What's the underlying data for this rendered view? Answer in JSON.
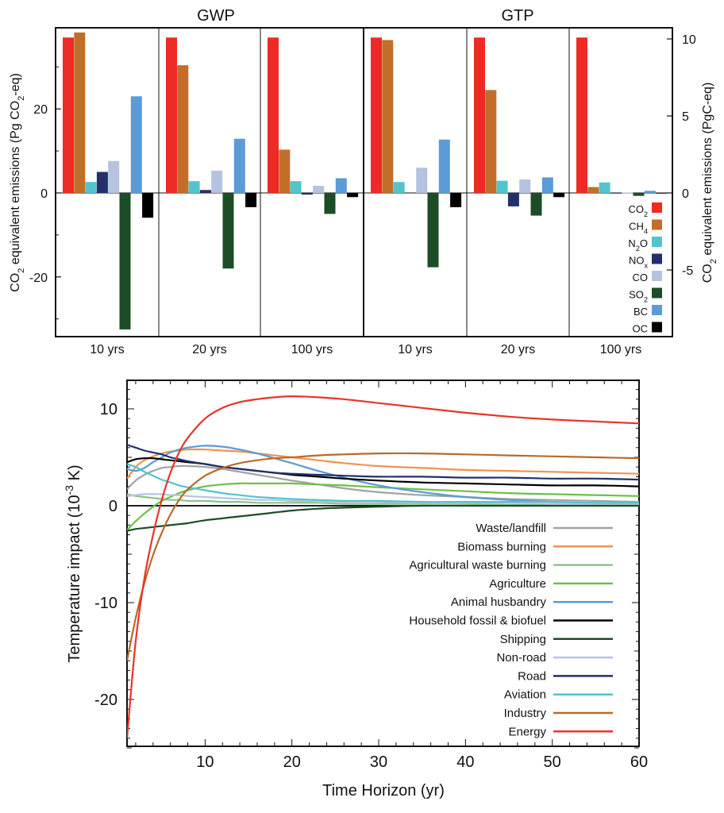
{
  "chart_data": [
    {
      "type": "bar",
      "group_titles": [
        "GWP",
        "GTP"
      ],
      "horizon_labels": [
        "10 yrs",
        "20 yrs",
        "100 yrs"
      ],
      "ylabel_left": {
        "main": "CO",
        "sub": "2",
        "rest": " equivalent emissions (Pg CO",
        "sub2": "2",
        "end": "-eq)"
      },
      "ylabel_right": {
        "main": "CO",
        "sub": "2",
        "rest": " equivalent emissions (PgC-eq)"
      },
      "yticks_left": [
        "-20",
        "0",
        "20"
      ],
      "yticks_right": [
        "-5",
        "0",
        "5",
        "10"
      ],
      "ylim_left": [
        -32.5,
        39
      ],
      "right_axis_factor_pg_co2_per_pgc": 3.667,
      "legend": [
        {
          "key": "CO2",
          "label": "CO",
          "sub": "2",
          "color": "#ee2a24"
        },
        {
          "key": "CH4",
          "label": "CH",
          "sub": "4",
          "color": "#c26e2b"
        },
        {
          "key": "N2O",
          "label": "N",
          "sub": "2",
          "tail": "O",
          "color": "#52c4cc"
        },
        {
          "key": "NOx",
          "label": "NO",
          "sub": "x",
          "color": "#23306b"
        },
        {
          "key": "CO",
          "label": "CO",
          "sub": "",
          "color": "#b6c3df"
        },
        {
          "key": "SO2",
          "label": "SO",
          "sub": "2",
          "color": "#1d4d27"
        },
        {
          "key": "BC",
          "label": "BC",
          "sub": "",
          "color": "#5a9bd8"
        },
        {
          "key": "OC",
          "label": "OC",
          "sub": "",
          "color": "#000000"
        }
      ],
      "panels": [
        {
          "metric": "GWP",
          "horizon": "10 yrs",
          "values": {
            "CO2": 37.0,
            "CH4": 38.2,
            "N2O": 2.6,
            "NOx": 5.0,
            "CO": 7.6,
            "SO2": -32.5,
            "BC": 23.0,
            "OC": -5.9
          }
        },
        {
          "metric": "GWP",
          "horizon": "20 yrs",
          "values": {
            "CO2": 37.0,
            "CH4": 30.4,
            "N2O": 2.8,
            "NOx": 0.7,
            "CO": 5.3,
            "SO2": -18.0,
            "BC": 12.9,
            "OC": -3.4
          }
        },
        {
          "metric": "GWP",
          "horizon": "100 yrs",
          "values": {
            "CO2": 37.0,
            "CH4": 10.3,
            "N2O": 2.8,
            "NOx": -0.4,
            "CO": 1.7,
            "SO2": -5.0,
            "BC": 3.5,
            "OC": -1.0
          }
        },
        {
          "metric": "GTP",
          "horizon": "10 yrs",
          "values": {
            "CO2": 37.0,
            "CH4": 36.4,
            "N2O": 2.6,
            "NOx": 0.0,
            "CO": 6.0,
            "SO2": -17.7,
            "BC": 12.7,
            "OC": -3.4
          }
        },
        {
          "metric": "GTP",
          "horizon": "20 yrs",
          "values": {
            "CO2": 37.0,
            "CH4": 24.5,
            "N2O": 2.9,
            "NOx": -3.2,
            "CO": 3.2,
            "SO2": -5.4,
            "BC": 3.7,
            "OC": -1.0
          }
        },
        {
          "metric": "GTP",
          "horizon": "100 yrs",
          "values": {
            "CO2": 37.0,
            "CH4": 1.4,
            "N2O": 2.5,
            "NOx": -0.1,
            "CO": 0.1,
            "SO2": -0.7,
            "BC": 0.5,
            "OC": -0.1
          }
        }
      ]
    },
    {
      "type": "line",
      "xlabel": "Time Horizon (yr)",
      "ylabel": {
        "main": "Temperature impact (10",
        "sup": "-3",
        "end": " K)"
      },
      "xlim": [
        1,
        60
      ],
      "ylim": [
        -25,
        13
      ],
      "xticks": [
        10,
        20,
        30,
        40,
        50,
        60
      ],
      "yticks": [
        -20,
        -10,
        0,
        10
      ],
      "zero_line": true,
      "x": [
        1,
        2,
        3,
        4,
        5,
        6,
        7,
        8,
        10,
        12,
        14,
        16,
        18,
        20,
        23,
        26,
        30,
        35,
        40,
        45,
        50,
        55,
        60
      ],
      "series": [
        {
          "name": "Waste/landfill",
          "color": "#a3a3a3",
          "values": [
            1.7,
            2.6,
            3.2,
            3.6,
            3.9,
            4.0,
            4.1,
            4.1,
            4.0,
            3.8,
            3.5,
            3.2,
            2.9,
            2.6,
            2.2,
            1.8,
            1.4,
            1.1,
            0.9,
            0.7,
            0.6,
            0.5,
            0.4
          ]
        },
        {
          "name": "Biomass burning",
          "color": "#f19250",
          "values": [
            2.8,
            4.0,
            4.7,
            5.1,
            5.4,
            5.6,
            5.7,
            5.8,
            5.8,
            5.7,
            5.6,
            5.4,
            5.2,
            5.0,
            4.7,
            4.4,
            4.1,
            3.9,
            3.7,
            3.6,
            3.5,
            3.4,
            3.3
          ]
        },
        {
          "name": "Agricultural waste burning",
          "color": "#8fc28c",
          "values": [
            1.2,
            1.0,
            0.9,
            0.8,
            0.7,
            0.6,
            0.6,
            0.5,
            0.5,
            0.4,
            0.4,
            0.3,
            0.3,
            0.3,
            0.3,
            0.2,
            0.2,
            0.2,
            0.2,
            0.1,
            0.1,
            0.1,
            0.1
          ]
        },
        {
          "name": "Agriculture",
          "color": "#6ac146",
          "values": [
            -2.5,
            -1.6,
            -0.8,
            -0.1,
            0.5,
            0.9,
            1.3,
            1.6,
            2.0,
            2.2,
            2.3,
            2.3,
            2.3,
            2.3,
            2.2,
            2.1,
            1.9,
            1.7,
            1.5,
            1.3,
            1.2,
            1.1,
            1.0
          ]
        },
        {
          "name": "Animal husbandry",
          "color": "#5b9bd6",
          "values": [
            3.8,
            3.6,
            3.9,
            4.5,
            5.0,
            5.5,
            5.8,
            6.0,
            6.2,
            6.1,
            5.8,
            5.4,
            4.9,
            4.4,
            3.6,
            2.9,
            2.1,
            1.4,
            0.9,
            0.6,
            0.4,
            0.3,
            0.2
          ]
        },
        {
          "name": "Household fossil & biofuel",
          "color": "#000000",
          "values": [
            4.5,
            4.8,
            4.9,
            4.9,
            4.8,
            4.7,
            4.6,
            4.5,
            4.3,
            4.0,
            3.8,
            3.6,
            3.4,
            3.2,
            3.0,
            2.8,
            2.6,
            2.4,
            2.3,
            2.2,
            2.1,
            2.1,
            2.0
          ]
        },
        {
          "name": "Shipping",
          "color": "#1d4d27",
          "values": [
            -2.6,
            -2.4,
            -2.3,
            -2.2,
            -2.1,
            -2.0,
            -1.9,
            -1.8,
            -1.5,
            -1.3,
            -1.1,
            -0.9,
            -0.7,
            -0.5,
            -0.3,
            -0.2,
            -0.1,
            0.0,
            0.0,
            0.0,
            0.0,
            0.0,
            0.0
          ]
        },
        {
          "name": "Non-road",
          "color": "#b6c3df",
          "values": [
            1.0,
            1.1,
            1.2,
            1.2,
            1.2,
            1.1,
            1.1,
            1.0,
            0.9,
            0.8,
            0.7,
            0.6,
            0.6,
            0.5,
            0.5,
            0.4,
            0.4,
            0.3,
            0.3,
            0.3,
            0.2,
            0.2,
            0.2
          ]
        },
        {
          "name": "Road",
          "color": "#23306b",
          "values": [
            6.3,
            6.0,
            5.7,
            5.5,
            5.3,
            5.0,
            4.8,
            4.6,
            4.3,
            4.0,
            3.8,
            3.6,
            3.4,
            3.3,
            3.2,
            3.1,
            3.0,
            3.0,
            2.9,
            2.9,
            2.8,
            2.8,
            2.7
          ]
        },
        {
          "name": "Aviation",
          "color": "#52c4cc",
          "values": [
            4.3,
            4.0,
            3.5,
            3.1,
            2.7,
            2.4,
            2.1,
            1.9,
            1.6,
            1.3,
            1.1,
            0.9,
            0.8,
            0.7,
            0.6,
            0.5,
            0.5,
            0.4,
            0.4,
            0.4,
            0.4,
            0.3,
            0.3
          ]
        },
        {
          "name": "Industry",
          "color": "#b86a2a",
          "values": [
            -16.0,
            -11.6,
            -8.0,
            -5.1,
            -2.8,
            -0.9,
            0.6,
            1.7,
            3.1,
            3.9,
            4.4,
            4.7,
            4.9,
            5.0,
            5.2,
            5.3,
            5.4,
            5.4,
            5.3,
            5.2,
            5.1,
            5.0,
            4.9
          ]
        },
        {
          "name": "Energy",
          "color": "#e8342a",
          "values": [
            -24.0,
            -14.0,
            -7.5,
            -3.0,
            0.6,
            3.4,
            5.5,
            7.0,
            9.0,
            10.1,
            10.7,
            11.0,
            11.2,
            11.3,
            11.2,
            11.0,
            10.6,
            10.1,
            9.6,
            9.2,
            8.9,
            8.7,
            8.5
          ]
        }
      ]
    }
  ]
}
